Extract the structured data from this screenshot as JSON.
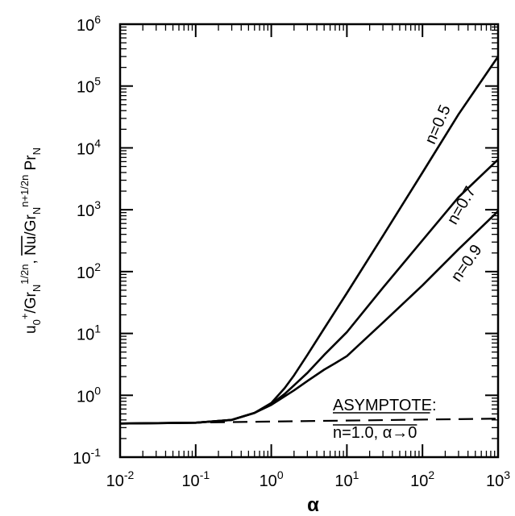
{
  "chart_data": {
    "type": "line",
    "x_scale": "log",
    "y_scale": "log",
    "xlim": [
      0.01,
      1000
    ],
    "ylim": [
      0.1,
      1000000
    ],
    "xlabel": "α",
    "ylabel": {
      "parts": [
        {
          "t": "u",
          "s": "n"
        },
        {
          "t": "0",
          "s": "sub"
        },
        {
          "t": "+",
          "s": "sup"
        },
        {
          "t": "/Gr",
          "s": "n"
        },
        {
          "t": "N",
          "s": "sub"
        },
        {
          "t": "1/2n",
          "s": "sup"
        },
        {
          "t": ", ",
          "s": "n"
        },
        {
          "t": "Nu",
          "s": "over"
        },
        {
          "t": "/Gr",
          "s": "n"
        },
        {
          "t": "N",
          "s": "sub"
        },
        {
          "t": "n+1/2n",
          "s": "sup"
        },
        {
          "t": " Pr",
          "s": "n"
        },
        {
          "t": "N",
          "s": "sub"
        }
      ]
    },
    "x_ticks": [
      {
        "value": 0.01,
        "base": "10",
        "exp": "-2"
      },
      {
        "value": 0.1,
        "base": "10",
        "exp": "-1"
      },
      {
        "value": 1,
        "base": "10",
        "exp": "0"
      },
      {
        "value": 10,
        "base": "10",
        "exp": "1"
      },
      {
        "value": 100,
        "base": "10",
        "exp": "2"
      },
      {
        "value": 1000,
        "base": "10",
        "exp": "3"
      }
    ],
    "y_ticks": [
      {
        "value": 0.1,
        "base": "10",
        "exp": "-1"
      },
      {
        "value": 1,
        "base": "10",
        "exp": "0"
      },
      {
        "value": 10,
        "base": "10",
        "exp": "1"
      },
      {
        "value": 100,
        "base": "10",
        "exp": "2"
      },
      {
        "value": 1000,
        "base": "10",
        "exp": "3"
      },
      {
        "value": 10000,
        "base": "10",
        "exp": "4"
      },
      {
        "value": 100000,
        "base": "10",
        "exp": "5"
      },
      {
        "value": 1000000,
        "base": "10",
        "exp": "6"
      }
    ],
    "series": [
      {
        "name": "n=0.5",
        "style": "solid",
        "x": [
          0.01,
          0.1,
          0.3,
          0.6,
          1,
          1.5,
          2,
          3,
          5,
          10,
          30,
          100,
          300,
          1000
        ],
        "y": [
          0.35,
          0.36,
          0.4,
          0.52,
          0.75,
          1.3,
          2.1,
          4.5,
          12,
          45,
          380,
          4000,
          35000,
          300000
        ]
      },
      {
        "name": "n=0.7",
        "style": "solid",
        "x": [
          0.01,
          0.1,
          0.3,
          0.6,
          1,
          1.5,
          2,
          3,
          5,
          10,
          30,
          100,
          300,
          1000
        ],
        "y": [
          0.35,
          0.36,
          0.4,
          0.52,
          0.72,
          1.05,
          1.45,
          2.3,
          4.5,
          10.5,
          55,
          320,
          1600,
          6500
        ]
      },
      {
        "name": "n=0.9",
        "style": "solid",
        "x": [
          0.01,
          0.1,
          0.3,
          0.6,
          1,
          2,
          3,
          5,
          7,
          10,
          30,
          100,
          300,
          1000
        ],
        "y": [
          0.35,
          0.36,
          0.4,
          0.52,
          0.7,
          1.2,
          1.7,
          2.6,
          3.3,
          4.3,
          15,
          60,
          230,
          950
        ]
      },
      {
        "name": "ASYMPTOTE",
        "style": "dashed",
        "x": [
          0.01,
          1000
        ],
        "y": [
          0.35,
          0.42
        ]
      }
    ],
    "annotations": [
      {
        "id": "n05",
        "text": "n=0.5"
      },
      {
        "id": "n07",
        "text": "n=0.7"
      },
      {
        "id": "n09",
        "text": "n=0.9"
      },
      {
        "id": "asym1",
        "text": "ASYMPTOTE:"
      },
      {
        "id": "asym2",
        "text": "n=1.0, α→0"
      }
    ],
    "grid": false,
    "legend": "none"
  }
}
